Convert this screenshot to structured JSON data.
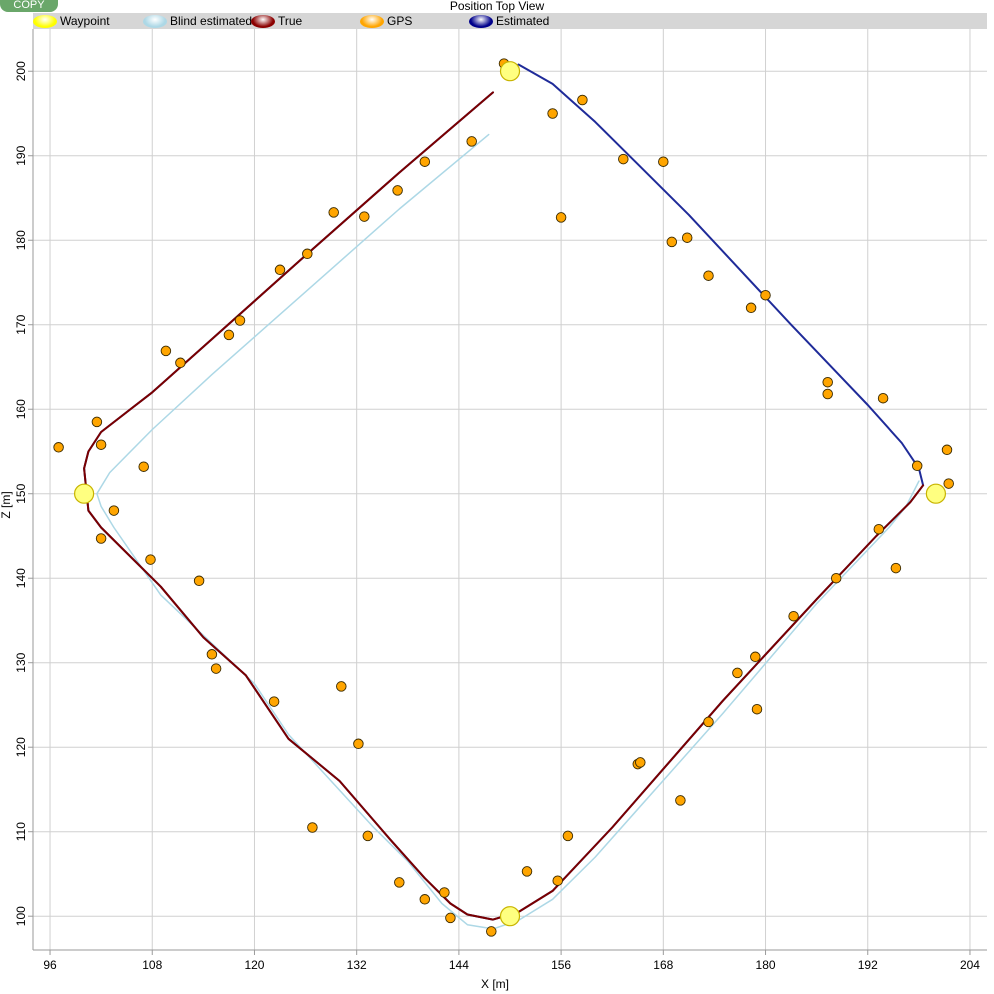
{
  "app": {
    "copy_label": "COPY"
  },
  "chart_data": {
    "type": "scatter",
    "title": "Position Top View",
    "xlabel": "X [m]",
    "ylabel": "Z [m]",
    "xlim": [
      94,
      206
    ],
    "ylim": [
      96,
      205
    ],
    "xticks": [
      96,
      108,
      120,
      132,
      144,
      156,
      168,
      180,
      192,
      204
    ],
    "yticks": [
      100,
      110,
      120,
      130,
      140,
      150,
      160,
      170,
      180,
      190,
      200
    ],
    "grid": true,
    "legend_position": "top",
    "legend": [
      {
        "name": "Waypoint",
        "color": "#ffff00"
      },
      {
        "name": "Blind estimated",
        "color": "#add8e6"
      },
      {
        "name": "True",
        "color": "#8b0000"
      },
      {
        "name": "GPS",
        "color": "#ffa500"
      },
      {
        "name": "Estimated",
        "color": "#00008b"
      }
    ],
    "series": [
      {
        "name": "Waypoint",
        "kind": "points",
        "color": "#ffff80",
        "stroke": "#c8b400",
        "points": [
          [
            150,
            200
          ],
          [
            100,
            150
          ],
          [
            150,
            100
          ],
          [
            200,
            150
          ]
        ]
      },
      {
        "name": "Blind estimated",
        "kind": "line",
        "color": "#add8e6",
        "points": [
          [
            147.5,
            192.5
          ],
          [
            137,
            183.7
          ],
          [
            126,
            173.9
          ],
          [
            115,
            164.1
          ],
          [
            108,
            157.6
          ],
          [
            103,
            152.5
          ],
          [
            101.5,
            150
          ],
          [
            102,
            148.5
          ],
          [
            103.5,
            146
          ],
          [
            109,
            138
          ],
          [
            120,
            127.5
          ],
          [
            124,
            121.5
          ],
          [
            134,
            110.5
          ],
          [
            138,
            106.5
          ],
          [
            142,
            101.5
          ],
          [
            145,
            99
          ],
          [
            148,
            98.5
          ],
          [
            151,
            99.5
          ],
          [
            155,
            102
          ],
          [
            160,
            107
          ],
          [
            175,
            124
          ],
          [
            186,
            137
          ],
          [
            194.5,
            146
          ],
          [
            196.5,
            148.5
          ],
          [
            198,
            151.5
          ]
        ]
      },
      {
        "name": "Estimated",
        "kind": "line",
        "color": "#1f2b99",
        "points": [
          [
            148,
            197.5
          ],
          [
            137,
            188
          ],
          [
            126,
            178.2
          ],
          [
            115,
            168.3
          ],
          [
            108,
            162
          ],
          [
            102,
            157.3
          ],
          [
            100.5,
            155
          ],
          [
            100,
            153
          ],
          [
            100.5,
            148
          ],
          [
            102,
            146
          ],
          [
            109,
            139
          ],
          [
            114,
            133
          ],
          [
            119,
            128.5
          ],
          [
            124,
            121
          ],
          [
            130,
            116
          ],
          [
            136,
            109
          ],
          [
            140,
            104.5
          ],
          [
            143,
            101.5
          ],
          [
            145,
            100.2
          ],
          [
            148,
            99.6
          ],
          [
            151,
            100.5
          ],
          [
            155,
            103
          ],
          [
            162,
            110.5
          ],
          [
            175,
            125.5
          ],
          [
            186,
            137.5
          ],
          [
            193,
            145
          ],
          [
            197,
            149
          ],
          [
            198.5,
            151
          ],
          [
            198,
            153
          ],
          [
            196,
            156
          ],
          [
            192,
            160.5
          ],
          [
            183,
            170
          ],
          [
            171,
            183
          ],
          [
            160,
            194
          ],
          [
            155,
            198.5
          ],
          [
            151,
            200.8
          ]
        ]
      },
      {
        "name": "True",
        "kind": "line",
        "color": "#7a0000",
        "points": [
          [
            148,
            197.5
          ],
          [
            137,
            188
          ],
          [
            126,
            178.2
          ],
          [
            115,
            168.3
          ],
          [
            108,
            162
          ],
          [
            102,
            157.3
          ],
          [
            100.5,
            155
          ],
          [
            100,
            153
          ],
          [
            100.5,
            148
          ],
          [
            102,
            146
          ],
          [
            109,
            139
          ],
          [
            114,
            133
          ],
          [
            119,
            128.5
          ],
          [
            124,
            121
          ],
          [
            130,
            116
          ],
          [
            136,
            109
          ],
          [
            140,
            104.5
          ],
          [
            143,
            101.5
          ],
          [
            145,
            100.2
          ],
          [
            148,
            99.6
          ],
          [
            151,
            100.5
          ],
          [
            155,
            103
          ],
          [
            162,
            110.5
          ],
          [
            175,
            125.5
          ],
          [
            186,
            137.5
          ],
          [
            193,
            145
          ],
          [
            197,
            149
          ],
          [
            198.5,
            151
          ]
        ]
      },
      {
        "name": "GPS",
        "kind": "points",
        "color": "#ffa500",
        "stroke": "#3a2a00",
        "points": [
          [
            97,
            155.5
          ],
          [
            101.5,
            158.5
          ],
          [
            102,
            155.8
          ],
          [
            107,
            153.2
          ],
          [
            103.5,
            148
          ],
          [
            102,
            144.7
          ],
          [
            107.8,
            142.2
          ],
          [
            113.5,
            139.7
          ],
          [
            115,
            131
          ],
          [
            115.5,
            129.3
          ],
          [
            122.3,
            125.4
          ],
          [
            126.8,
            110.5
          ],
          [
            130.2,
            127.2
          ],
          [
            132.2,
            120.4
          ],
          [
            133.3,
            109.5
          ],
          [
            137,
            104
          ],
          [
            140,
            102
          ],
          [
            142.3,
            102.8
          ],
          [
            143,
            99.8
          ],
          [
            147.8,
            98.2
          ],
          [
            152,
            105.3
          ],
          [
            155.6,
            104.2
          ],
          [
            156.8,
            109.5
          ],
          [
            165,
            118
          ],
          [
            165.3,
            118.2
          ],
          [
            170,
            113.7
          ],
          [
            173.3,
            123
          ],
          [
            176.7,
            128.8
          ],
          [
            178.8,
            130.7
          ],
          [
            179,
            124.5
          ],
          [
            183.3,
            135.5
          ],
          [
            188.3,
            140
          ],
          [
            193.3,
            145.8
          ],
          [
            195.3,
            141.2
          ],
          [
            197.8,
            153.3
          ],
          [
            201.3,
            155.2
          ],
          [
            201.5,
            151.2
          ],
          [
            193.8,
            161.3
          ],
          [
            187.3,
            161.8
          ],
          [
            187.3,
            163.2
          ],
          [
            180,
            173.5
          ],
          [
            178.3,
            172
          ],
          [
            173.3,
            175.8
          ],
          [
            170.8,
            180.3
          ],
          [
            169,
            179.8
          ],
          [
            168,
            189.3
          ],
          [
            163.3,
            189.6
          ],
          [
            156,
            182.7
          ],
          [
            155,
            195
          ],
          [
            158.5,
            196.6
          ],
          [
            149.3,
            200.9
          ],
          [
            145.5,
            191.7
          ],
          [
            140,
            189.3
          ],
          [
            136.8,
            185.9
          ],
          [
            132.9,
            182.8
          ],
          [
            129.3,
            183.3
          ],
          [
            126.2,
            178.4
          ],
          [
            123,
            176.5
          ],
          [
            118.3,
            170.5
          ],
          [
            117,
            168.8
          ],
          [
            111.3,
            165.5
          ],
          [
            109.6,
            166.9
          ]
        ]
      }
    ]
  }
}
